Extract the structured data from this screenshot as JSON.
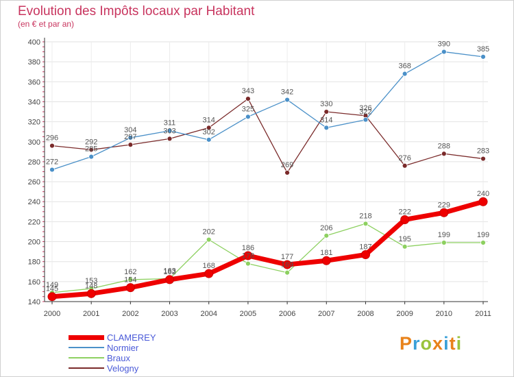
{
  "title": "Evolution des Impôts locaux par Habitant",
  "subtitle": "(en € et par an)",
  "logo": "Proxiti",
  "chart_data": {
    "type": "line",
    "title": "Evolution des Impôts locaux par Habitant",
    "subtitle": "(en € et par an)",
    "xlabel": "",
    "ylabel": "",
    "x": [
      "2000",
      "2001",
      "2002",
      "2003",
      "2004",
      "2005",
      "2006",
      "2007",
      "2008",
      "2009",
      "2010",
      "2011"
    ],
    "ylim": [
      140,
      400
    ],
    "yticks": [
      140,
      160,
      180,
      200,
      220,
      240,
      260,
      280,
      300,
      320,
      340,
      360,
      380,
      400
    ],
    "grid": true,
    "legend_position": "bottom-left",
    "series": [
      {
        "name": "CLAMEREY",
        "color": "#ee0000",
        "values": [
          145,
          148,
          154,
          162,
          168,
          186,
          177,
          181,
          187,
          222,
          229,
          240
        ]
      },
      {
        "name": "Normier",
        "color": "#4a90c8",
        "values": [
          272,
          285,
          304,
          311,
          302,
          325,
          342,
          314,
          322,
          368,
          390,
          385
        ]
      },
      {
        "name": "Braux",
        "color": "#8dd060",
        "values": [
          149,
          153,
          162,
          163,
          202,
          178,
          169,
          206,
          218,
          195,
          199,
          199
        ]
      },
      {
        "name": "Velogny",
        "color": "#7a2a2a",
        "values": [
          296,
          292,
          297,
          303,
          314,
          343,
          269,
          330,
          326,
          276,
          288,
          283
        ]
      }
    ]
  }
}
